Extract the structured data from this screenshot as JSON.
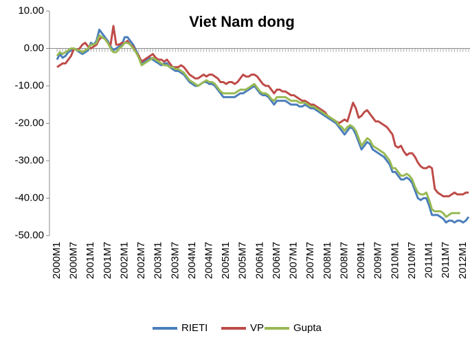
{
  "chart_data": {
    "type": "line",
    "title": "Viet Nam dong",
    "categories": [
      "2000M1",
      null,
      null,
      null,
      null,
      null,
      "2000M7",
      null,
      null,
      null,
      null,
      null,
      "2001M1",
      null,
      null,
      null,
      null,
      null,
      "2001M7",
      null,
      null,
      null,
      null,
      null,
      "2002M1",
      null,
      null,
      null,
      null,
      null,
      "2002M7",
      null,
      null,
      null,
      null,
      null,
      "2003M1",
      null,
      null,
      null,
      null,
      null,
      "2003M7",
      null,
      null,
      null,
      null,
      null,
      "2004M1",
      null,
      null,
      null,
      null,
      null,
      "2004M7",
      null,
      null,
      null,
      null,
      null,
      "2005M1",
      null,
      null,
      null,
      null,
      null,
      "2005M7",
      null,
      null,
      null,
      null,
      null,
      "2006M1",
      null,
      null,
      null,
      null,
      null,
      "2006M7",
      null,
      null,
      null,
      null,
      null,
      "2007M1",
      null,
      null,
      null,
      null,
      null,
      "2007M7",
      null,
      null,
      null,
      null,
      null,
      "2008M1",
      null,
      null,
      null,
      null,
      null,
      "2008M7",
      null,
      null,
      null,
      null,
      null,
      "2009M1",
      null,
      null,
      null,
      null,
      null,
      "2009M7",
      null,
      null,
      null,
      null,
      null,
      "2010M1",
      null,
      null,
      null,
      null,
      null,
      "2010M7",
      null,
      null,
      null,
      null,
      null,
      "2011M1",
      null,
      null,
      null,
      null,
      null,
      "2011M7",
      null,
      null,
      null,
      null,
      null,
      "2012M1",
      null,
      null
    ],
    "series": [
      {
        "name": "RIETI",
        "color": "#4a7ebb",
        "values": [
          -3,
          -1.5,
          -2.5,
          -2,
          -1,
          -0.5,
          0,
          -0.5,
          -1,
          -1.5,
          -1,
          -0.5,
          1.5,
          1,
          2,
          5,
          4,
          3,
          2,
          0.5,
          -0.5,
          0,
          0.5,
          1,
          3,
          3,
          2,
          1,
          -0.5,
          -2,
          -4,
          -3.5,
          -3,
          -2.5,
          -3,
          -3.5,
          -4,
          -4.5,
          -4,
          -4,
          -5,
          -5.5,
          -6,
          -6,
          -6.5,
          -7,
          -8,
          -9,
          -9.5,
          -10,
          -10,
          -9.5,
          -9,
          -9,
          -9.5,
          -9.5,
          -10,
          -11,
          -12,
          -13,
          -13,
          -13,
          -13,
          -13,
          -12.5,
          -12,
          -12,
          -11.5,
          -11,
          -10.5,
          -10,
          -11,
          -12,
          -12.5,
          -12.5,
          -13,
          -14,
          -15,
          -14,
          -14,
          -14,
          -14,
          -14.5,
          -15,
          -15,
          -15,
          -15.5,
          -15.5,
          -15,
          -15.5,
          -16,
          -16,
          -16.5,
          -17,
          -17.5,
          -18,
          -18.5,
          -19,
          -19.5,
          -20,
          -21,
          -22,
          -23,
          -22,
          -21,
          -21.5,
          -23,
          -25,
          -27,
          -26,
          -25,
          -25.5,
          -27,
          -27.5,
          -28,
          -28.5,
          -29,
          -30,
          -31,
          -33,
          -33,
          -34,
          -35,
          -35,
          -34.5,
          -35,
          -36,
          -38,
          -40,
          -40.5,
          -40,
          -40,
          -42,
          -44.5,
          -44.5,
          -44.5,
          -45,
          -45.5,
          -46.5,
          -46,
          -46,
          -46.5,
          -46,
          -46,
          -46.5,
          -46,
          -45
        ]
      },
      {
        "name": "VP",
        "color": "#be4b48",
        "values": [
          -5,
          -4.5,
          -4,
          -4,
          -3,
          -2,
          0,
          -0.5,
          0,
          1,
          1.5,
          0.5,
          0,
          0.5,
          1,
          2.5,
          3,
          2.5,
          1.5,
          1,
          6,
          1,
          1,
          1.5,
          1.5,
          2,
          1,
          0.5,
          -1,
          -2,
          -3.5,
          -3,
          -2.5,
          -2,
          -1.5,
          -2.5,
          -3,
          -3,
          -3.5,
          -3,
          -4,
          -5,
          -5,
          -5,
          -4.5,
          -5,
          -6,
          -7,
          -7.5,
          -8,
          -8,
          -7.5,
          -7,
          -7.5,
          -7,
          -7,
          -7.5,
          -8,
          -9,
          -9,
          -9.5,
          -9,
          -9,
          -9.5,
          -9,
          -8,
          -7,
          -7.5,
          -7.5,
          -7,
          -7,
          -7.5,
          -8.5,
          -9.5,
          -10,
          -10,
          -11,
          -12,
          -11,
          -11,
          -11.5,
          -11.5,
          -12,
          -12.5,
          -12.5,
          -13,
          -13.5,
          -14,
          -14,
          -14.5,
          -15,
          -15,
          -15.5,
          -16,
          -16.5,
          -17,
          -18,
          -18.5,
          -19,
          -19.5,
          -20,
          -19.5,
          -19,
          -19.5,
          -17,
          -14.5,
          -16,
          -18.5,
          -18,
          -17,
          -16.5,
          -17.5,
          -18.5,
          -19.5,
          -19.5,
          -20,
          -20.5,
          -21,
          -22,
          -23,
          -26,
          -26.5,
          -26,
          -27.5,
          -28.5,
          -28,
          -28,
          -29,
          -30.5,
          -31.5,
          -32,
          -32,
          -31.5,
          -32,
          -37.5,
          -38.5,
          -39,
          -39.5,
          -39.5,
          -39.5,
          -39,
          -38.5,
          -39,
          -39,
          -39,
          -38.5,
          -38.5
        ]
      },
      {
        "name": "Gupta",
        "color": "#98b954",
        "values": [
          -2,
          -1,
          -1.5,
          -1,
          -0.5,
          0,
          0,
          -0.5,
          -0.5,
          -1,
          -0.5,
          0,
          1,
          1,
          1.5,
          3.5,
          3,
          2.5,
          1.5,
          0,
          -1,
          -1,
          0,
          0.5,
          1.5,
          1.5,
          1,
          0,
          -1,
          -2.5,
          -4.5,
          -4,
          -3.5,
          -3,
          -2.5,
          -3,
          -3.5,
          -4,
          -4.5,
          -4.5,
          -5,
          -5,
          -5.5,
          -5.5,
          -6,
          -6.5,
          -7.5,
          -8.5,
          -9,
          -9.5,
          -10,
          -9.5,
          -9,
          -8.5,
          -9,
          -9,
          -9.5,
          -10.5,
          -11.5,
          -12,
          -12,
          -12,
          -12,
          -12,
          -11.5,
          -11,
          -11,
          -11,
          -10.5,
          -10,
          -9.5,
          -10.5,
          -11.5,
          -12,
          -12,
          -12.5,
          -13.5,
          -14,
          -13,
          -13,
          -13,
          -13,
          -13.5,
          -14,
          -14,
          -14,
          -14.5,
          -14.5,
          -14.5,
          -15,
          -15.5,
          -15.5,
          -16,
          -16.5,
          -17,
          -17.5,
          -18,
          -18.5,
          -19,
          -19.5,
          -20.5,
          -21,
          -22,
          -21,
          -20.5,
          -21,
          -22,
          -24,
          -26,
          -25,
          -24,
          -24.5,
          -26,
          -26.5,
          -27,
          -27.5,
          -28,
          -29,
          -30,
          -32,
          -32,
          -33,
          -34,
          -34,
          -33.5,
          -34,
          -35,
          -37,
          -38.5,
          -39,
          -39,
          -38.5,
          -40.5,
          -43,
          -43.5,
          -43.5,
          -43.5,
          -44,
          -45,
          -44.5,
          -44,
          -44,
          -44,
          -44,
          null,
          null,
          null
        ]
      }
    ],
    "ylim": [
      -50,
      10
    ],
    "yticks": [
      {
        "value": 10,
        "label": "10.00"
      },
      {
        "value": 0,
        "label": "0.00"
      },
      {
        "value": -10,
        "label": "-10.00"
      },
      {
        "value": -20,
        "label": "-20.00"
      },
      {
        "value": -30,
        "label": "-30.00"
      },
      {
        "value": -40,
        "label": "-40.00"
      },
      {
        "value": -50,
        "label": "-50.00"
      }
    ],
    "legend": "bottom"
  }
}
